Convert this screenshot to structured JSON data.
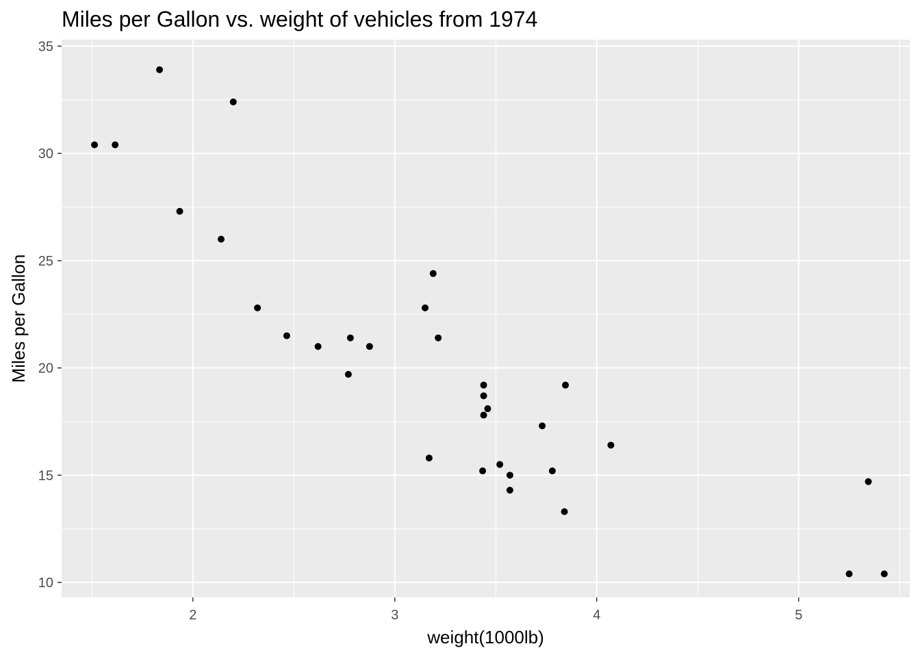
{
  "chart_data": {
    "type": "scatter",
    "title": "Miles per Gallon vs. weight of vehicles from 1974",
    "xlabel": "weight(1000lb)",
    "ylabel": "Miles per Gallon",
    "xlim": [
      1.35,
      5.55
    ],
    "ylim": [
      9.3,
      35.3
    ],
    "x_ticks": [
      2,
      3,
      4,
      5
    ],
    "y_ticks": [
      10,
      15,
      20,
      25,
      30,
      35
    ],
    "grid": true,
    "background": "#ebebeb",
    "grid_color": "#ffffff",
    "point_color": "#000000",
    "points": [
      {
        "x": 2.62,
        "y": 21.0
      },
      {
        "x": 2.875,
        "y": 21.0
      },
      {
        "x": 2.32,
        "y": 22.8
      },
      {
        "x": 3.215,
        "y": 21.4
      },
      {
        "x": 3.44,
        "y": 18.7
      },
      {
        "x": 3.46,
        "y": 18.1
      },
      {
        "x": 3.57,
        "y": 14.3
      },
      {
        "x": 3.19,
        "y": 24.4
      },
      {
        "x": 3.15,
        "y": 22.8
      },
      {
        "x": 3.44,
        "y": 19.2
      },
      {
        "x": 3.44,
        "y": 17.8
      },
      {
        "x": 4.07,
        "y": 16.4
      },
      {
        "x": 3.73,
        "y": 17.3
      },
      {
        "x": 3.78,
        "y": 15.2
      },
      {
        "x": 5.25,
        "y": 10.4
      },
      {
        "x": 5.424,
        "y": 10.4
      },
      {
        "x": 5.345,
        "y": 14.7
      },
      {
        "x": 2.2,
        "y": 32.4
      },
      {
        "x": 1.615,
        "y": 30.4
      },
      {
        "x": 1.835,
        "y": 33.9
      },
      {
        "x": 2.465,
        "y": 21.5
      },
      {
        "x": 3.52,
        "y": 15.5
      },
      {
        "x": 3.435,
        "y": 15.2
      },
      {
        "x": 3.84,
        "y": 13.3
      },
      {
        "x": 3.845,
        "y": 19.2
      },
      {
        "x": 1.935,
        "y": 27.3
      },
      {
        "x": 2.14,
        "y": 26.0
      },
      {
        "x": 1.513,
        "y": 30.4
      },
      {
        "x": 3.17,
        "y": 15.8
      },
      {
        "x": 2.77,
        "y": 19.7
      },
      {
        "x": 3.57,
        "y": 15.0
      },
      {
        "x": 2.78,
        "y": 21.4
      }
    ]
  }
}
